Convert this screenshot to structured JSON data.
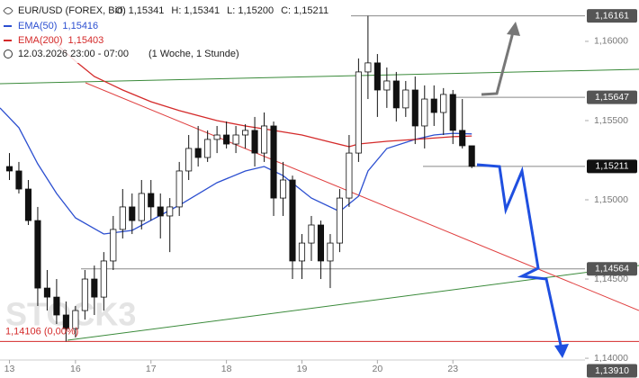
{
  "chart_data": {
    "type": "candlestick",
    "title": "EUR/USD (FOREX, Bid)",
    "quote": [
      {
        "key": "O:",
        "value": "1,15341"
      },
      {
        "key": "H:",
        "value": "1,15341"
      },
      {
        "key": "L:",
        "value": "1,15200"
      },
      {
        "key": "C:",
        "value": "1,15211"
      }
    ],
    "timeframe": "12.03.2026 23:00 - 07:00",
    "period": "(1 Woche, 1 Stunde)",
    "watermark": "STOCK3",
    "x": [
      0,
      1,
      2,
      3,
      4,
      5,
      6,
      7,
      8,
      9,
      10,
      11,
      12,
      13,
      14,
      15,
      16,
      17,
      18,
      19,
      20,
      21,
      22,
      23,
      24,
      25,
      26,
      27,
      28,
      29,
      30,
      31,
      32,
      33,
      34,
      35,
      36,
      37,
      38,
      39,
      40,
      41,
      42,
      43,
      44,
      45,
      46,
      47,
      48,
      49
    ],
    "open": [
      1.1521,
      1.15182,
      1.15068,
      1.14869,
      1.14443,
      1.14386,
      1.14273,
      1.14187,
      1.14301,
      1.145,
      1.14386,
      1.14614,
      1.14813,
      1.14955,
      1.14869,
      1.1504,
      1.14955,
      1.14898,
      1.14955,
      1.15182,
      1.15324,
      1.15267,
      1.15381,
      1.15409,
      1.15352,
      1.15409,
      1.15438,
      1.15295,
      1.15466,
      1.15011,
      1.15125,
      1.14614,
      1.14727,
      1.14841,
      1.14614,
      1.14727,
      1.15011,
      1.15295,
      1.15807,
      1.15864,
      1.15693,
      1.1575,
      1.1558,
      1.15693,
      1.15466,
      1.15636,
      1.15551,
      1.15665,
      1.15438,
      1.15341
    ],
    "high": [
      1.15295,
      1.15239,
      1.15125,
      1.14955,
      1.14557,
      1.145,
      1.14358,
      1.1433,
      1.14557,
      1.14585,
      1.1467,
      1.14898,
      1.15068,
      1.1504,
      1.15125,
      1.15125,
      1.1504,
      1.15011,
      1.15239,
      1.15409,
      1.15466,
      1.15438,
      1.15466,
      1.15494,
      1.15466,
      1.15477,
      1.15523,
      1.15551,
      1.15494,
      1.15239,
      1.15153,
      1.14784,
      1.14898,
      1.14869,
      1.14784,
      1.15068,
      1.15409,
      1.15892,
      1.16161,
      1.1592,
      1.15835,
      1.15807,
      1.1575,
      1.15778,
      1.15722,
      1.15722,
      1.15705,
      1.15693,
      1.15636,
      1.15341
    ],
    "low": [
      1.15125,
      1.1504,
      1.14841,
      1.1433,
      1.14301,
      1.14216,
      1.14106,
      1.14131,
      1.14244,
      1.14273,
      1.14301,
      1.14557,
      1.14756,
      1.14784,
      1.14813,
      1.14869,
      1.14756,
      1.1467,
      1.14898,
      1.15125,
      1.1521,
      1.15239,
      1.15295,
      1.15324,
      1.15295,
      1.15324,
      1.1521,
      1.15239,
      1.14898,
      1.14898,
      1.145,
      1.145,
      1.14614,
      1.145,
      1.14443,
      1.1467,
      1.14955,
      1.15239,
      1.15636,
      1.15523,
      1.1558,
      1.15494,
      1.15523,
      1.15352,
      1.15324,
      1.15466,
      1.15409,
      1.15352,
      1.15324,
      1.152
    ],
    "close": [
      1.15182,
      1.15068,
      1.14869,
      1.14443,
      1.14386,
      1.14273,
      1.14187,
      1.14301,
      1.145,
      1.14386,
      1.14614,
      1.14813,
      1.14955,
      1.14869,
      1.1504,
      1.14955,
      1.14898,
      1.14955,
      1.15182,
      1.15324,
      1.15267,
      1.15381,
      1.15409,
      1.15352,
      1.15409,
      1.15438,
      1.15295,
      1.15466,
      1.15011,
      1.15125,
      1.14614,
      1.14727,
      1.14841,
      1.14614,
      1.14727,
      1.15011,
      1.15295,
      1.15807,
      1.15864,
      1.15693,
      1.1575,
      1.1558,
      1.15693,
      1.15466,
      1.15636,
      1.15551,
      1.15665,
      1.15438,
      1.15341,
      1.15211
    ],
    "up_color": "#ffffff",
    "down_color": "#111111",
    "indicators": [
      {
        "name": "EMA(50)",
        "value_label": "1,15416",
        "color": "#2c4fd0",
        "x": [
          -1,
          1,
          3,
          5,
          7,
          10,
          13,
          18,
          22,
          25,
          27,
          29,
          32,
          35,
          37,
          38,
          40,
          43,
          45,
          47,
          49
        ],
        "values": [
          1.1558,
          1.15455,
          1.15227,
          1.1504,
          1.14886,
          1.14784,
          1.14807,
          1.14966,
          1.15108,
          1.15182,
          1.1521,
          1.15153,
          1.15011,
          1.14926,
          1.15023,
          1.15182,
          1.15324,
          1.15381,
          1.15409,
          1.1542,
          1.15416
        ]
      },
      {
        "name": "EMA(200)",
        "value_label": "1,15403",
        "color": "#d42a2a",
        "x": [
          4,
          7,
          9,
          12,
          15,
          18,
          22,
          25,
          28,
          31,
          34,
          36,
          37,
          40,
          43,
          47,
          49
        ],
        "values": [
          1.16034,
          1.15875,
          1.15778,
          1.15693,
          1.15619,
          1.15563,
          1.155,
          1.15466,
          1.15438,
          1.15409,
          1.15364,
          1.15335,
          1.15352,
          1.15369,
          1.15381,
          1.15398,
          1.15403
        ]
      }
    ],
    "levels": [
      {
        "value": 1.16161,
        "label": "1,16161"
      },
      {
        "value": 1.15647,
        "label": "1,15647"
      },
      {
        "value": 1.15211,
        "label": "1,15211"
      },
      {
        "value": 1.14564,
        "label": "1,14564"
      },
      {
        "value": 1.1391,
        "label": "1,13910"
      }
    ],
    "low_marker": {
      "value": 1.14106,
      "label": "1,14106 (0,00%)",
      "color": "#d42a2a"
    },
    "xlim": [
      -1,
      61
    ],
    "xticks": [
      {
        "value": 0,
        "label": "13"
      },
      {
        "value": 7,
        "label": "16"
      },
      {
        "value": 15,
        "label": "17"
      },
      {
        "value": 23,
        "label": "18"
      },
      {
        "value": 31,
        "label": "19"
      },
      {
        "value": 39,
        "label": "20"
      },
      {
        "value": 47,
        "label": "23"
      }
    ],
    "ylim": [
      1.13989,
      1.16261
    ],
    "yticks": [
      {
        "value": 1.14,
        "label": "1,14000"
      },
      {
        "value": 1.145,
        "label": "1,14500"
      },
      {
        "value": 1.15,
        "label": "1,15000"
      },
      {
        "value": 1.155,
        "label": "1,15500"
      },
      {
        "value": 1.16,
        "label": "1,16000"
      }
    ]
  }
}
